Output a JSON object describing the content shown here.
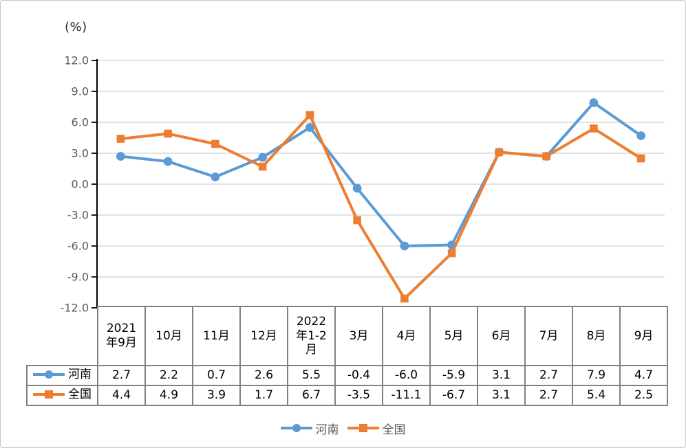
{
  "chart_data": {
    "type": "line",
    "title": "",
    "ylabel": "(%)",
    "xlabel": "",
    "categories": [
      "2021年9月",
      "10月",
      "11月",
      "12月",
      "2022年1-2月",
      "3月",
      "4月",
      "5月",
      "6月",
      "7月",
      "8月",
      "9月"
    ],
    "series": [
      {
        "name": "河南",
        "marker": "circle",
        "color": "#5B9BD5",
        "values": [
          2.7,
          2.2,
          0.7,
          2.6,
          5.5,
          -0.4,
          -6.0,
          -5.9,
          3.1,
          2.7,
          7.9,
          4.7
        ]
      },
      {
        "name": "全国",
        "marker": "square",
        "color": "#ED7D31",
        "values": [
          4.4,
          4.9,
          3.9,
          1.7,
          6.7,
          -3.5,
          -11.1,
          -6.7,
          3.1,
          2.7,
          5.4,
          2.5
        ]
      }
    ],
    "ylim": [
      -12.0,
      12.0
    ],
    "ytick_step": 3.0,
    "ytick_labels": [
      "12.0",
      "9.0",
      "6.0",
      "3.0",
      "0.0",
      "-3.0",
      "-6.0",
      "-9.0",
      "-12.0"
    ],
    "grid": "horizontal",
    "legend_position": "bottom"
  },
  "table": {
    "column_headers": [
      "2021\n年9月",
      "10月",
      "11月",
      "12月",
      "2022\n年1-2\n月",
      "3月",
      "4月",
      "5月",
      "6月",
      "7月",
      "8月",
      "9月"
    ],
    "rows": [
      {
        "label": "河南",
        "values": [
          "2.7",
          "2.2",
          "0.7",
          "2.6",
          "5.5",
          "-0.4",
          "-6.0",
          "-5.9",
          "3.1",
          "2.7",
          "7.9",
          "4.7"
        ]
      },
      {
        "label": "全国",
        "values": [
          "4.4",
          "4.9",
          "3.9",
          "1.7",
          "6.7",
          "-3.5",
          "-11.1",
          "-6.7",
          "3.1",
          "2.7",
          "5.4",
          "2.5"
        ]
      }
    ]
  },
  "legend": {
    "items": [
      {
        "label": "河南",
        "color": "#5B9BD5",
        "marker": "circle"
      },
      {
        "label": "全国",
        "color": "#ED7D31",
        "marker": "square"
      }
    ]
  },
  "colors": {
    "henan_blue": "#5B9BD5",
    "national_orange": "#ED7D31",
    "gridline": "#D9D9D9",
    "axis": "#000000",
    "tick_label": "#595959",
    "table_border": "#808080",
    "legend_text": "#595959"
  }
}
